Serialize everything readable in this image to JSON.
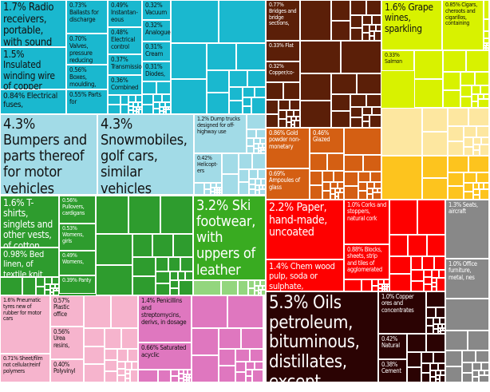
{
  "chart_data": {
    "type": "treemap",
    "unit": "% share",
    "groups": [
      {
        "key": "machinery",
        "color": "#1ab8cf"
      },
      {
        "key": "transport",
        "color": "#a2dbe7"
      },
      {
        "key": "textiles",
        "color": "#2e9c2e"
      },
      {
        "key": "footwear",
        "color": "#39ab21"
      },
      {
        "key": "footwear-light",
        "color": "#93d67e"
      },
      {
        "key": "plastics",
        "color": "#f6b4cd"
      },
      {
        "key": "chemicals",
        "color": "#df77bf"
      },
      {
        "key": "metals",
        "color": "#5b1f08"
      },
      {
        "key": "stone-glass",
        "color": "#d45f13"
      },
      {
        "key": "foodstuffs",
        "color": "#d8f200"
      },
      {
        "key": "animal-products",
        "color": "#fde7a0"
      },
      {
        "key": "vegetable-products",
        "color": "#fdc41e"
      },
      {
        "key": "paper-wood",
        "color": "#fe0000"
      },
      {
        "key": "miscellaneous",
        "color": "#888888"
      },
      {
        "key": "minerals",
        "color": "#2b0303"
      }
    ],
    "items": [
      {
        "label": "1.7% Radio receivers, portable, with sound",
        "value": 1.7,
        "group": "machinery"
      },
      {
        "label": "1.5% Insulated winding wire of copper",
        "value": 1.5,
        "group": "machinery"
      },
      {
        "label": "0.84% Electrical fuses,",
        "value": 0.84,
        "group": "machinery"
      },
      {
        "label": "0.73% Ballasts for discharge",
        "value": 0.73,
        "group": "machinery"
      },
      {
        "label": "0.70% Valves, pressure reducing",
        "value": 0.7,
        "group": "machinery"
      },
      {
        "label": "0.56% Boxes, moulding,",
        "value": 0.56,
        "group": "machinery"
      },
      {
        "label": "0.55% Parts for",
        "value": 0.55,
        "group": "machinery"
      },
      {
        "label": "0.49% Instantan-eous",
        "value": 0.49,
        "group": "machinery"
      },
      {
        "label": "0.48% Electrical control",
        "value": 0.48,
        "group": "machinery"
      },
      {
        "label": "0.37% Transmission",
        "value": 0.37,
        "group": "machinery"
      },
      {
        "label": "0.36% Combined",
        "value": 0.36,
        "group": "machinery"
      },
      {
        "label": "0.32% Vacuum",
        "value": 0.32,
        "group": "machinery"
      },
      {
        "label": "0.32% Analogue",
        "value": 0.32,
        "group": "machinery"
      },
      {
        "label": "0.31% Cream",
        "value": 0.31,
        "group": "machinery"
      },
      {
        "label": "0.31% Diodes,",
        "value": 0.31,
        "group": "machinery"
      },
      {
        "label": "4.3% Bumpers and parts thereof for motor vehicles",
        "value": 4.3,
        "group": "transport"
      },
      {
        "label": "4.3% Snowmobiles, golf cars, similar vehicles",
        "value": 4.3,
        "group": "transport"
      },
      {
        "label": "1.2% Dump trucks designed for off-highway use",
        "value": 1.2,
        "group": "transport"
      },
      {
        "label": "0.42% Helicopt-ers",
        "value": 0.42,
        "group": "transport"
      },
      {
        "label": "1.6% T-shirts, singlets and other vests, of cotton,",
        "value": 1.6,
        "group": "textiles"
      },
      {
        "label": "0.98% Bed linen, of textile knit",
        "value": 0.98,
        "group": "textiles"
      },
      {
        "label": "0.56% Pullovers, cardigans",
        "value": 0.56,
        "group": "textiles"
      },
      {
        "label": "0.53% Womens, girls",
        "value": 0.53,
        "group": "textiles"
      },
      {
        "label": "0.49% Womens,",
        "value": 0.49,
        "group": "textiles"
      },
      {
        "label": "0.39% Panty",
        "value": 0.39,
        "group": "textiles"
      },
      {
        "label": "3.2% Ski footwear, with uppers of leather",
        "value": 3.2,
        "group": "footwear"
      },
      {
        "label": "1.6% Pneumatic tyres new of rubber for motor cars",
        "value": 1.6,
        "group": "plastics"
      },
      {
        "label": "0.71% Sheet/film not cellular/reinf polymers",
        "value": 0.71,
        "group": "plastics"
      },
      {
        "label": "0.57% Plastic office",
        "value": 0.57,
        "group": "plastics"
      },
      {
        "label": "0.56% Urea resins,",
        "value": 0.56,
        "group": "plastics"
      },
      {
        "label": "0.40% Polyvinyl",
        "value": 0.4,
        "group": "plastics"
      },
      {
        "label": "1.4% Penicillins and streptomycins, derivs, in dosage",
        "value": 1.4,
        "group": "chemicals"
      },
      {
        "label": "0.66% Saturated acyclic",
        "value": 0.66,
        "group": "chemicals"
      },
      {
        "label": "0.77% Bridges and bridge sections,",
        "value": 0.77,
        "group": "metals"
      },
      {
        "label": "0.33% Flat",
        "value": 0.33,
        "group": "metals"
      },
      {
        "label": "0.32% Copper/co-",
        "value": 0.32,
        "group": "metals"
      },
      {
        "label": "0.86% Gold powder non-monetary",
        "value": 0.86,
        "group": "stone-glass"
      },
      {
        "label": "0.46% Glazed",
        "value": 0.46,
        "group": "stone-glass"
      },
      {
        "label": "0.69% Ampoules of glass",
        "value": 0.69,
        "group": "stone-glass"
      },
      {
        "label": "1.6% Grape wines, sparkling",
        "value": 1.6,
        "group": "foodstuffs"
      },
      {
        "label": "0.85% Cigars, cheroots and cigarillos, containing",
        "value": 0.85,
        "group": "foodstuffs"
      },
      {
        "label": "0.33% Salmon",
        "value": 0.33,
        "group": "foodstuffs"
      },
      {
        "label": "2.2% Paper, hand-made, uncoated",
        "value": 2.2,
        "group": "paper-wood"
      },
      {
        "label": "1.4% Chem wood pulp, soda or sulphate,",
        "value": 1.4,
        "group": "paper-wood"
      },
      {
        "label": "1.0% Corks and stoppers, natural cork",
        "value": 1.0,
        "group": "paper-wood"
      },
      {
        "label": "0.88% Blocks, sheets, strip and tiles of agglomerated",
        "value": 0.88,
        "group": "paper-wood"
      },
      {
        "label": "1.3% Seats, aircraft",
        "value": 1.3,
        "group": "miscellaneous"
      },
      {
        "label": "1.0% Office furniture, metal, nes",
        "value": 1.0,
        "group": "miscellaneous"
      },
      {
        "label": "5.3% Oils petroleum, bituminous, distillates, except",
        "value": 5.3,
        "group": "minerals"
      },
      {
        "label": "1.0% Copper ores and concentrates",
        "value": 1.0,
        "group": "minerals"
      },
      {
        "label": "0.42% Natural",
        "value": 0.42,
        "group": "minerals"
      },
      {
        "label": "0.38% Cement",
        "value": 0.38,
        "group": "minerals"
      }
    ]
  }
}
